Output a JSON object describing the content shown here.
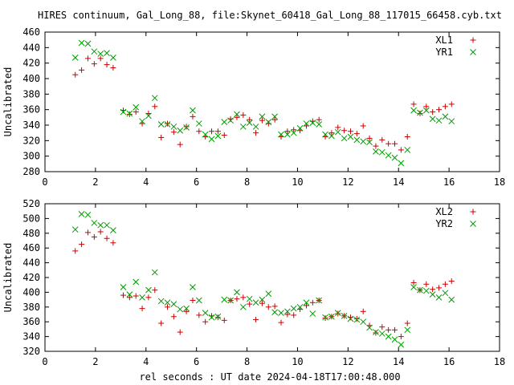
{
  "title": "HIRES continuum, Gal_Long_88, file:Skynet_60418_Gal_Long_88_117015_66458.cyb.txt",
  "xlabel": "rel seconds : UT date 2024-04-18T17:00:48.000",
  "colors": {
    "plus": "#cc0000",
    "cross": "#009900",
    "axis": "#000000"
  },
  "chart_data": [
    {
      "type": "scatter",
      "ylabel": "Uncalibrated",
      "xlim": [
        0,
        18
      ],
      "ylim": [
        280,
        460
      ],
      "xticks": [
        0,
        2,
        4,
        6,
        8,
        10,
        12,
        14,
        16,
        18
      ],
      "yticks": [
        280,
        300,
        320,
        340,
        360,
        380,
        400,
        420,
        440,
        460
      ],
      "legend_position": "top-right",
      "series": [
        {
          "name": "XL1",
          "marker": "plus",
          "x": [
            1.2,
            1.45,
            1.7,
            1.95,
            2.2,
            2.45,
            2.7,
            3.1,
            3.35,
            3.6,
            3.85,
            4.1,
            4.35,
            4.6,
            4.85,
            5.1,
            5.35,
            5.6,
            5.85,
            6.1,
            6.35,
            6.6,
            6.85,
            7.1,
            7.35,
            7.6,
            7.85,
            8.1,
            8.35,
            8.6,
            8.85,
            9.1,
            9.35,
            9.6,
            9.85,
            10.1,
            10.35,
            10.6,
            10.85,
            11.1,
            11.35,
            11.6,
            11.85,
            12.1,
            12.35,
            12.6,
            12.85,
            13.1,
            13.35,
            13.6,
            13.85,
            14.1,
            14.35,
            14.6,
            14.85,
            15.1,
            15.35,
            15.6,
            15.85,
            16.1,
            16.35
          ],
          "y": [
            405,
            411,
            426,
            419,
            426,
            418,
            414,
            359,
            354,
            357,
            342,
            355,
            364,
            324,
            342,
            331,
            315,
            338,
            351,
            332,
            325,
            332,
            332,
            327,
            348,
            350,
            353,
            347,
            330,
            346,
            342,
            347,
            325,
            332,
            334,
            333,
            339,
            345,
            347,
            325,
            330,
            337,
            333,
            332,
            329,
            339,
            323,
            313,
            321,
            316,
            316,
            308,
            325,
            367,
            355,
            364,
            357,
            360,
            364,
            367,
            null
          ],
          "note": "x values estimated from plot"
        },
        {
          "name": "YR1",
          "marker": "cross",
          "x": [
            1.2,
            1.45,
            1.7,
            1.95,
            2.2,
            2.45,
            2.7,
            3.1,
            3.35,
            3.6,
            3.85,
            4.1,
            4.35,
            4.6,
            4.85,
            5.1,
            5.35,
            5.6,
            5.85,
            6.1,
            6.35,
            6.6,
            6.85,
            7.1,
            7.35,
            7.6,
            7.85,
            8.1,
            8.35,
            8.6,
            8.85,
            9.1,
            9.35,
            9.6,
            9.85,
            10.1,
            10.35,
            10.6,
            10.85,
            11.1,
            11.35,
            11.6,
            11.85,
            12.1,
            12.35,
            12.6,
            12.85,
            13.1,
            13.35,
            13.6,
            13.85,
            14.1,
            14.35,
            14.6,
            14.85,
            15.1,
            15.35,
            15.6,
            15.85,
            16.1,
            16.35
          ],
          "y": [
            427,
            446,
            445,
            435,
            432,
            433,
            427,
            357,
            355,
            363,
            345,
            352,
            375,
            341,
            341,
            338,
            333,
            337,
            359,
            342,
            328,
            322,
            326,
            344,
            346,
            354,
            338,
            343,
            338,
            351,
            344,
            351,
            328,
            328,
            330,
            336,
            342,
            343,
            341,
            328,
            326,
            331,
            323,
            325,
            321,
            319,
            318,
            306,
            305,
            301,
            298,
            291,
            308,
            359,
            356,
            359,
            348,
            346,
            351,
            345,
            null
          ]
        }
      ]
    },
    {
      "type": "scatter",
      "ylabel": "Uncalibrated",
      "xlim": [
        0,
        18
      ],
      "ylim": [
        320,
        520
      ],
      "xticks": [
        0,
        2,
        4,
        6,
        8,
        10,
        12,
        14,
        16,
        18
      ],
      "yticks": [
        320,
        340,
        360,
        380,
        400,
        420,
        440,
        460,
        480,
        500,
        520
      ],
      "legend_position": "top-right",
      "series": [
        {
          "name": "XL2",
          "marker": "plus",
          "x": [
            1.2,
            1.45,
            1.7,
            1.95,
            2.2,
            2.45,
            2.7,
            3.1,
            3.35,
            3.6,
            3.85,
            4.1,
            4.35,
            4.6,
            4.85,
            5.1,
            5.35,
            5.6,
            5.85,
            6.1,
            6.35,
            6.6,
            6.85,
            7.1,
            7.35,
            7.6,
            7.85,
            8.1,
            8.35,
            8.6,
            8.85,
            9.1,
            9.35,
            9.6,
            9.85,
            10.1,
            10.35,
            10.6,
            10.85,
            11.1,
            11.35,
            11.6,
            11.85,
            12.1,
            12.35,
            12.6,
            12.85,
            13.1,
            13.35,
            13.6,
            13.85,
            14.1,
            14.35,
            14.6,
            14.85,
            15.1,
            15.35,
            15.6,
            15.85,
            16.1,
            16.35
          ],
          "y": [
            456,
            465,
            481,
            475,
            482,
            473,
            467,
            396,
            393,
            395,
            378,
            393,
            403,
            358,
            380,
            367,
            346,
            374,
            389,
            369,
            360,
            368,
            366,
            362,
            389,
            391,
            393,
            384,
            363,
            385,
            380,
            381,
            359,
            370,
            369,
            377,
            382,
            386,
            389,
            365,
            367,
            371,
            368,
            366,
            364,
            374,
            355,
            345,
            353,
            349,
            349,
            340,
            358,
            413,
            403,
            411,
            404,
            406,
            411,
            415,
            null
          ]
        },
        {
          "name": "YR2",
          "marker": "cross",
          "x": [
            1.2,
            1.45,
            1.7,
            1.95,
            2.2,
            2.45,
            2.7,
            3.1,
            3.35,
            3.6,
            3.85,
            4.1,
            4.35,
            4.6,
            4.85,
            5.1,
            5.35,
            5.6,
            5.85,
            6.1,
            6.35,
            6.6,
            6.85,
            7.1,
            7.35,
            7.6,
            7.85,
            8.1,
            8.35,
            8.6,
            8.85,
            9.1,
            9.35,
            9.6,
            9.85,
            10.1,
            10.35,
            10.6,
            10.85,
            11.1,
            11.35,
            11.6,
            11.85,
            12.1,
            12.35,
            12.6,
            12.85,
            13.1,
            13.35,
            13.6,
            13.85,
            14.1,
            14.35,
            14.6,
            14.85,
            15.1,
            15.35,
            15.6,
            15.85,
            16.1,
            16.35
          ],
          "y": [
            485,
            506,
            505,
            494,
            491,
            491,
            484,
            407,
            397,
            414,
            393,
            403,
            427,
            388,
            386,
            384,
            377,
            378,
            407,
            389,
            372,
            366,
            367,
            390,
            389,
            400,
            380,
            391,
            386,
            390,
            398,
            373,
            372,
            374,
            378,
            380,
            386,
            371,
            389,
            366,
            367,
            372,
            368,
            364,
            363,
            360,
            352,
            346,
            344,
            340,
            336,
            329,
            349,
            407,
            403,
            402,
            397,
            393,
            399,
            390,
            null
          ]
        }
      ]
    }
  ]
}
